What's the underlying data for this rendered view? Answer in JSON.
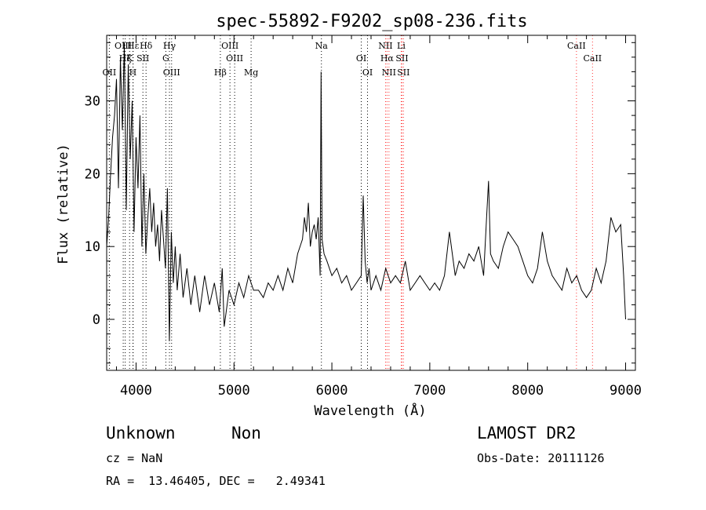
{
  "chart_data": {
    "type": "line",
    "title": "spec-55892-F9202_sp08-236.fits",
    "xlabel": "Wavelength (Å)",
    "ylabel": "Flux (relative)",
    "xlim": [
      3700,
      9100
    ],
    "ylim": [
      -7,
      39
    ],
    "xticks": [
      4000,
      5000,
      6000,
      7000,
      8000,
      9000
    ],
    "yticks": [
      0,
      10,
      20,
      30
    ],
    "grid": false,
    "series": [
      {
        "color": "#000000",
        "x": [
          3700,
          3720,
          3740,
          3760,
          3780,
          3800,
          3820,
          3840,
          3860,
          3880,
          3900,
          3920,
          3940,
          3960,
          3980,
          4000,
          4020,
          4040,
          4060,
          4080,
          4100,
          4120,
          4140,
          4160,
          4180,
          4200,
          4220,
          4240,
          4260,
          4280,
          4300,
          4320,
          4340,
          4360,
          4380,
          4400,
          4420,
          4450,
          4480,
          4520,
          4560,
          4600,
          4650,
          4700,
          4750,
          4800,
          4850,
          4880,
          4900,
          4950,
          5000,
          5050,
          5100,
          5150,
          5200,
          5250,
          5300,
          5350,
          5400,
          5450,
          5500,
          5550,
          5600,
          5650,
          5700,
          5720,
          5740,
          5760,
          5780,
          5800,
          5820,
          5840,
          5860,
          5880,
          5890,
          5900,
          5920,
          5950,
          6000,
          6050,
          6100,
          6150,
          6200,
          6250,
          6300,
          6320,
          6340,
          6360,
          6380,
          6400,
          6450,
          6500,
          6550,
          6600,
          6650,
          6700,
          6750,
          6800,
          6850,
          6900,
          6950,
          7000,
          7050,
          7100,
          7150,
          7200,
          7230,
          7260,
          7300,
          7350,
          7400,
          7450,
          7500,
          7550,
          7580,
          7600,
          7620,
          7650,
          7700,
          7750,
          7800,
          7850,
          7900,
          7950,
          8000,
          8050,
          8100,
          8150,
          8200,
          8250,
          8300,
          8350,
          8400,
          8450,
          8500,
          8550,
          8600,
          8650,
          8700,
          8750,
          8800,
          8850,
          8900,
          8950,
          8980,
          9000
        ],
        "y": [
          10,
          14,
          20,
          25,
          28,
          33,
          18,
          36,
          26,
          38,
          15,
          35,
          22,
          30,
          12,
          25,
          18,
          28,
          10,
          20,
          9,
          14,
          18,
          12,
          16,
          10,
          13,
          8,
          15,
          11,
          7,
          18,
          -3,
          12,
          5,
          10,
          4,
          9,
          3,
          7,
          2,
          6,
          1,
          6,
          2,
          5,
          1,
          7,
          -1,
          4,
          2,
          5,
          3,
          6,
          4,
          4,
          3,
          5,
          4,
          6,
          4,
          7,
          5,
          9,
          11,
          14,
          12,
          16,
          10,
          12,
          13,
          11,
          14,
          6,
          34,
          11,
          9,
          8,
          6,
          7,
          5,
          6,
          4,
          5,
          6,
          17,
          8,
          5,
          7,
          4,
          6,
          4,
          7,
          5,
          6,
          5,
          8,
          4,
          5,
          6,
          5,
          4,
          5,
          4,
          6,
          12,
          9,
          6,
          8,
          7,
          9,
          8,
          10,
          6,
          14,
          19,
          9,
          8,
          7,
          10,
          12,
          11,
          10,
          8,
          6,
          5,
          7,
          12,
          8,
          6,
          5,
          4,
          7,
          5,
          6,
          4,
          3,
          4,
          7,
          5,
          8,
          14,
          12,
          13,
          6,
          0
        ]
      }
    ],
    "line_markers": [
      {
        "label": "Hε",
        "x": 3970
      },
      {
        "label": "Hζ",
        "x": 3889
      },
      {
        "label": "OII",
        "x": 3727
      },
      {
        "label": "OIII",
        "x": 3869
      },
      {
        "label": "K",
        "x": 3934
      },
      {
        "label": "H",
        "x": 3968
      },
      {
        "label": "Hδ",
        "x": 4102
      },
      {
        "label": "SII",
        "x": 4070
      },
      {
        "label": "OIII",
        "x": 4363
      },
      {
        "label": "Hγ",
        "x": 4341
      },
      {
        "label": "G",
        "x": 4304
      },
      {
        "label": "Hβ",
        "x": 4861
      },
      {
        "label": "OIII",
        "x": 4959
      },
      {
        "label": "OIII",
        "x": 5007
      },
      {
        "label": "Mg",
        "x": 5175
      },
      {
        "label": "Na",
        "x": 5893
      },
      {
        "label": "OI",
        "x": 6300
      },
      {
        "label": "OI",
        "x": 6364
      },
      {
        "label": "NII",
        "x": 6548
      },
      {
        "label": "Hα",
        "x": 6563
      },
      {
        "label": "NII",
        "x": 6583
      },
      {
        "label": "Li",
        "x": 6708
      },
      {
        "label": "SII",
        "x": 6716
      },
      {
        "label": "SII",
        "x": 6731
      },
      {
        "label": "CaII",
        "x": 8498
      },
      {
        "label": "CaII",
        "x": 8662
      }
    ],
    "marker_colors": {
      "red": "#ff3333",
      "black": "#000000"
    }
  },
  "footer": {
    "class_text": "Unknown",
    "subclass_text": "Non",
    "survey": "LAMOST DR2",
    "cz": "cz = NaN",
    "obs_date": "Obs-Date: 20111126",
    "radec": "RA =  13.46405, DEC =   2.49341"
  }
}
